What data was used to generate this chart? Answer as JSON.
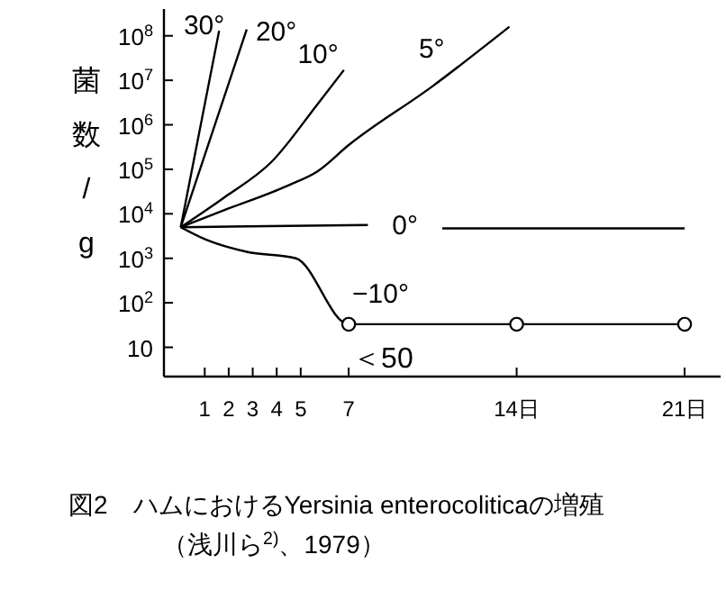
{
  "chart_data": {
    "type": "line",
    "title": "図2　ハムにおけるYersinia enterocoliticaの増殖",
    "subtitle": "（浅川ら$^{2)}$、1979）",
    "ylabel": "菌数/g",
    "log": "y",
    "grid": false,
    "legend": false,
    "marker": "none",
    "line_style": "solid",
    "xlim": [
      -0.7,
      22.5
    ],
    "xticks": [
      1,
      2,
      3,
      4,
      5,
      7,
      {
        "value": 14,
        "label": "14日"
      },
      {
        "value": 21,
        "label": "21日"
      }
    ],
    "ylim": [
      2.2,
      400000000
    ],
    "yticks": [
      {
        "value": 10,
        "label": "10"
      },
      {
        "value": 100,
        "label": "10$^{2}$"
      },
      {
        "value": 1000,
        "label": "10$^{3}$"
      },
      {
        "value": 10000,
        "label": "10$^{4}$"
      },
      {
        "value": 100000,
        "label": "10$^{5}$"
      },
      {
        "value": 1000000,
        "label": "10$^{6}$"
      },
      {
        "value": 10000000,
        "label": "10$^{7}$"
      },
      {
        "value": 100000000,
        "label": "10$^{8}$"
      }
    ],
    "annotations": [
      {
        "text": "＜50",
        "x": 7,
        "y": 33
      }
    ],
    "series": [
      {
        "name": "30°",
        "color": "#000000",
        "x": [
          0,
          1.6
        ],
        "values": [
          5000,
          130000000
        ]
      },
      {
        "name": "20°",
        "color": "#000000",
        "x": [
          0,
          2.75
        ],
        "values": [
          5000,
          140000000
        ]
      },
      {
        "name": "10°",
        "color": "#000000",
        "x": [
          0,
          1.8,
          3.8,
          5.7,
          6.8
        ],
        "values": [
          5000,
          23000,
          150000,
          2900000,
          17000000
        ]
      },
      {
        "name": "5°",
        "color": "#000000",
        "x": [
          0,
          1.8,
          4.5,
          5.7,
          7,
          10.5,
          13.7
        ],
        "values": [
          5000,
          12000,
          44000,
          90000,
          350000,
          7400000,
          160000000
        ]
      },
      {
        "name": "0°",
        "color": "#000000",
        "x": [
          0,
          7.8,
          9.3,
          10.9,
          21
        ],
        "values": [
          5000,
          5600,
          null,
          4700,
          4700
        ]
      },
      {
        "name": "−10°",
        "color": "#000000",
        "x": [
          0,
          1,
          2.75,
          4.8,
          7,
          14,
          21
        ],
        "values": [
          5000,
          2700,
          1400,
          1000,
          33,
          33,
          33
        ]
      },
      {
        "type": "scatter",
        "marker": "circle",
        "color": "#000000",
        "x": [
          7,
          14,
          21
        ],
        "values": [
          33,
          33,
          33
        ]
      }
    ]
  }
}
